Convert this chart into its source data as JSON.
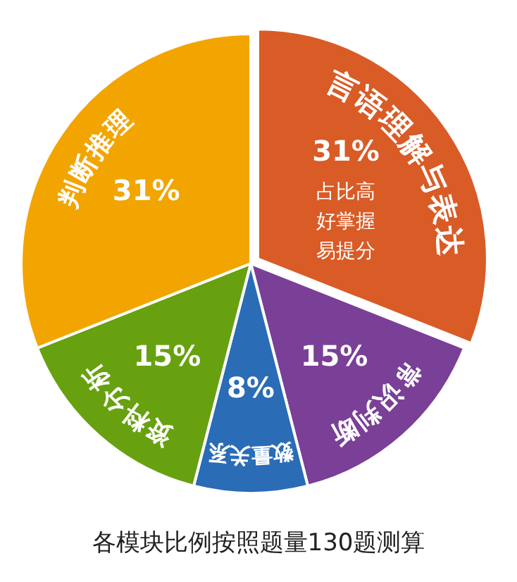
{
  "chart_data": {
    "type": "pie",
    "categories": [
      "言语理解与表达",
      "常识判断",
      "数量关系",
      "资料分析",
      "判断推理"
    ],
    "values": [
      31,
      15,
      8,
      15,
      31
    ],
    "value_labels": [
      "31%",
      "15%",
      "8%",
      "15%",
      "31%"
    ],
    "colors": [
      "#d95b26",
      "#7a3f96",
      "#2a6cb6",
      "#67a10f",
      "#f2a500"
    ],
    "annotations": [
      "占比高",
      "好掌握",
      "易提分",
      "各模块比例按照题量130题测算"
    ]
  }
}
